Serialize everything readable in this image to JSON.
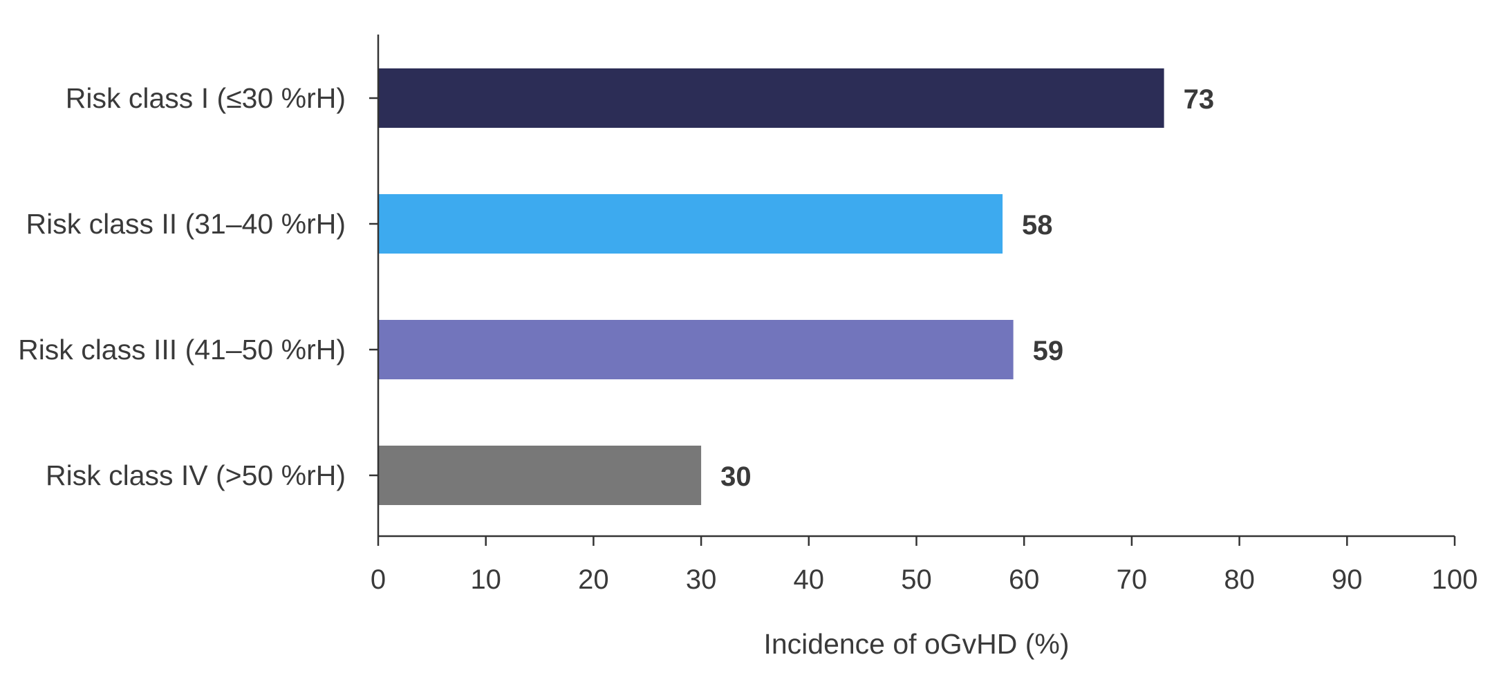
{
  "chart_data": {
    "type": "bar",
    "orientation": "horizontal",
    "categories": [
      "Risk class I (≤30 %rH)",
      "Risk class II (31–40 %rH)",
      "Risk class III (41–50 %rH)",
      "Risk class IV (>50 %rH)"
    ],
    "values": [
      73,
      58,
      59,
      30
    ],
    "value_labels": [
      "73",
      "58",
      "59",
      "30"
    ],
    "colors": [
      "#2c2d56",
      "#3daaef",
      "#7275bc",
      "#787878"
    ],
    "xlabel": "Incidence of oGvHD (%)",
    "ylabel": "",
    "xlim": [
      0,
      100
    ],
    "x_ticks": [
      0,
      10,
      20,
      30,
      40,
      50,
      60,
      70,
      80,
      90,
      100
    ],
    "x_tick_labels": [
      "0",
      "10",
      "20",
      "30",
      "40",
      "50",
      "60",
      "70",
      "80",
      "90",
      "100"
    ],
    "grid": false,
    "legend": "none"
  }
}
